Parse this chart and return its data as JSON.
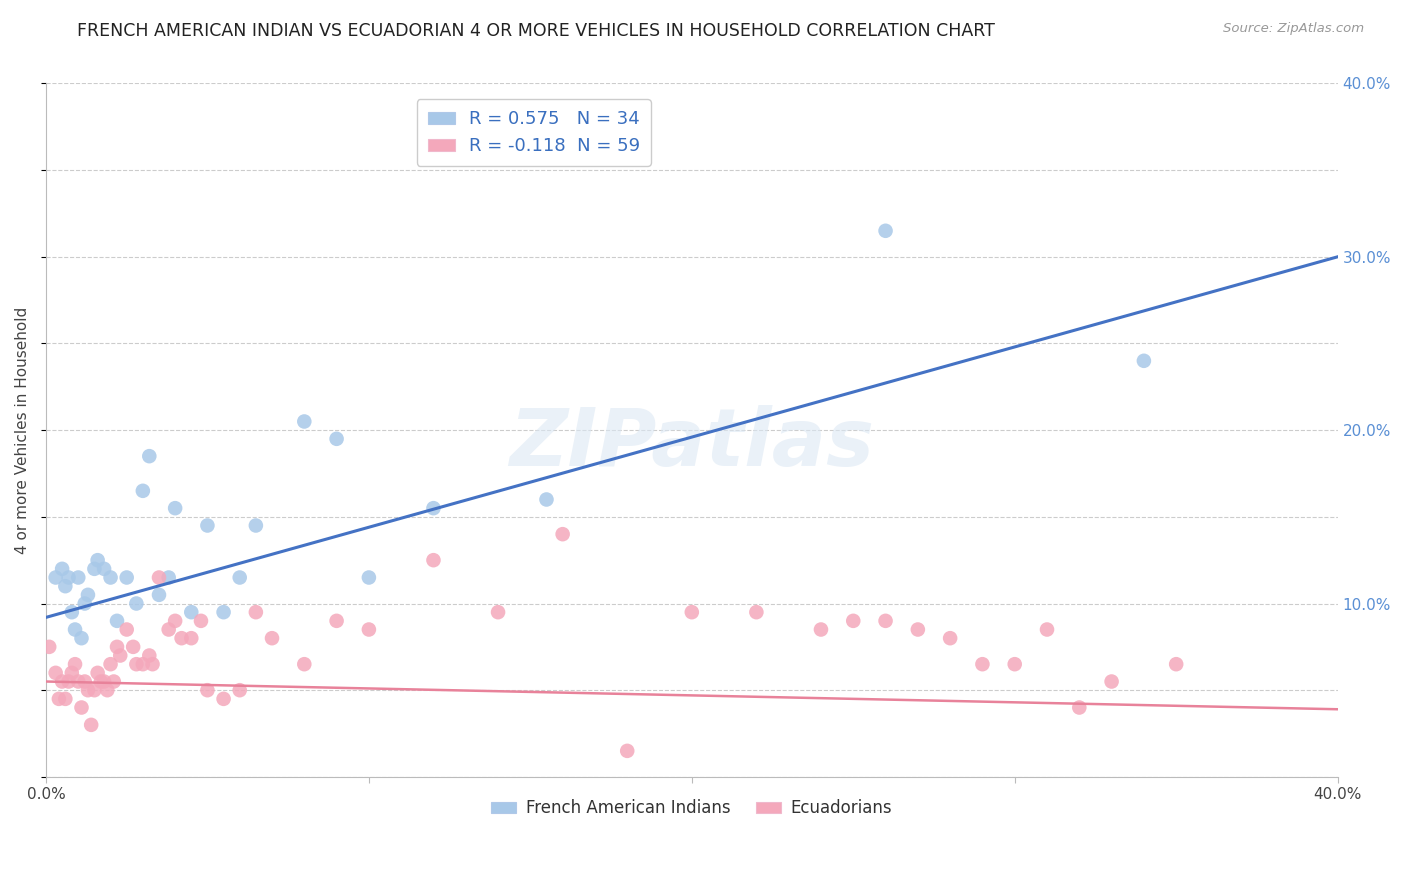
{
  "title": "FRENCH AMERICAN INDIAN VS ECUADORIAN 4 OR MORE VEHICLES IN HOUSEHOLD CORRELATION CHART",
  "source": "Source: ZipAtlas.com",
  "ylabel": "4 or more Vehicles in Household",
  "xlim": [
    0.0,
    0.4
  ],
  "ylim": [
    0.0,
    0.4
  ],
  "yticks": [
    0.0,
    0.1,
    0.2,
    0.3,
    0.4
  ],
  "ytick_labels": [
    "",
    "10.0%",
    "20.0%",
    "30.0%",
    "40.0%"
  ],
  "xticks": [
    0.0,
    0.1,
    0.2,
    0.3,
    0.4
  ],
  "xtick_labels": [
    "0.0%",
    "",
    "",
    "",
    "40.0%"
  ],
  "blue_color": "#a8c8e8",
  "pink_color": "#f4a8bb",
  "blue_line_color": "#4472c4",
  "pink_line_color": "#e8829a",
  "blue_R": 0.575,
  "blue_N": 34,
  "pink_R": -0.118,
  "pink_N": 59,
  "watermark": "ZIPatlas",
  "legend_label_blue": "French American Indians",
  "legend_label_pink": "Ecuadorians",
  "blue_points_x": [
    0.003,
    0.005,
    0.006,
    0.007,
    0.008,
    0.009,
    0.01,
    0.011,
    0.012,
    0.013,
    0.015,
    0.016,
    0.018,
    0.02,
    0.022,
    0.025,
    0.028,
    0.03,
    0.032,
    0.035,
    0.038,
    0.04,
    0.045,
    0.05,
    0.055,
    0.06,
    0.065,
    0.08,
    0.09,
    0.1,
    0.12,
    0.155,
    0.26,
    0.34
  ],
  "blue_points_y": [
    0.115,
    0.12,
    0.11,
    0.115,
    0.095,
    0.085,
    0.115,
    0.08,
    0.1,
    0.105,
    0.12,
    0.125,
    0.12,
    0.115,
    0.09,
    0.115,
    0.1,
    0.165,
    0.185,
    0.105,
    0.115,
    0.155,
    0.095,
    0.145,
    0.095,
    0.115,
    0.145,
    0.205,
    0.195,
    0.115,
    0.155,
    0.16,
    0.315,
    0.24
  ],
  "pink_points_x": [
    0.001,
    0.003,
    0.004,
    0.005,
    0.006,
    0.007,
    0.008,
    0.009,
    0.01,
    0.011,
    0.012,
    0.013,
    0.014,
    0.015,
    0.016,
    0.017,
    0.018,
    0.019,
    0.02,
    0.021,
    0.022,
    0.023,
    0.025,
    0.027,
    0.028,
    0.03,
    0.032,
    0.033,
    0.035,
    0.038,
    0.04,
    0.042,
    0.045,
    0.048,
    0.05,
    0.055,
    0.06,
    0.065,
    0.07,
    0.08,
    0.09,
    0.1,
    0.12,
    0.14,
    0.16,
    0.18,
    0.2,
    0.22,
    0.24,
    0.25,
    0.26,
    0.27,
    0.28,
    0.29,
    0.3,
    0.31,
    0.32,
    0.33,
    0.35
  ],
  "pink_points_y": [
    0.075,
    0.06,
    0.045,
    0.055,
    0.045,
    0.055,
    0.06,
    0.065,
    0.055,
    0.04,
    0.055,
    0.05,
    0.03,
    0.05,
    0.06,
    0.055,
    0.055,
    0.05,
    0.065,
    0.055,
    0.075,
    0.07,
    0.085,
    0.075,
    0.065,
    0.065,
    0.07,
    0.065,
    0.115,
    0.085,
    0.09,
    0.08,
    0.08,
    0.09,
    0.05,
    0.045,
    0.05,
    0.095,
    0.08,
    0.065,
    0.09,
    0.085,
    0.125,
    0.095,
    0.14,
    0.015,
    0.095,
    0.095,
    0.085,
    0.09,
    0.09,
    0.085,
    0.08,
    0.065,
    0.065,
    0.085,
    0.04,
    0.055,
    0.065
  ],
  "blue_intercept": 0.092,
  "blue_slope": 0.52,
  "pink_intercept": 0.055,
  "pink_slope": -0.04
}
